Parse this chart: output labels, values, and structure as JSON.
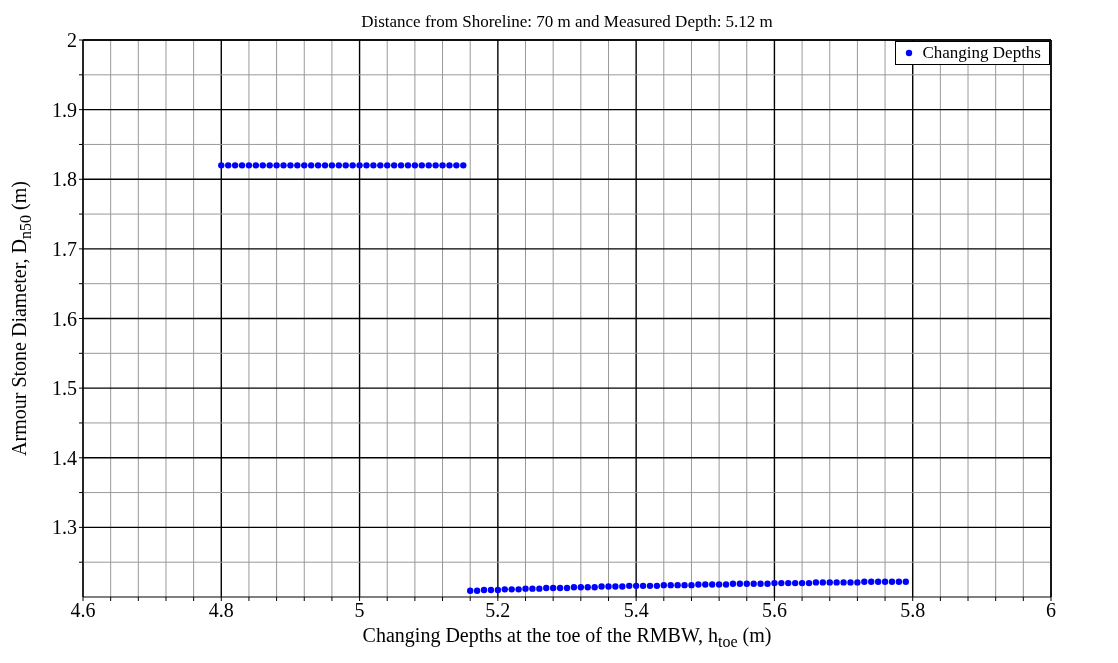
{
  "chart_data": {
    "type": "scatter",
    "title": "Distance from Shoreline: 70 m and Measured Depth: 5.12 m",
    "xlabel": "Changing Depths at the toe of the RMBW, h$_{toe}$ (m)",
    "ylabel": "Armour Stone Diameter, D$_{n50}$ (m)",
    "xlim": [
      4.6,
      6
    ],
    "ylim": [
      1.2,
      2
    ],
    "xticks": [
      4.6,
      {
        "value": 4.64,
        "label": null
      },
      {
        "value": 4.68,
        "label": null
      },
      {
        "value": 4.72,
        "label": null
      },
      {
        "value": 4.76,
        "label": null
      },
      4.8,
      {
        "value": 4.84,
        "label": null
      },
      {
        "value": 4.88,
        "label": null
      },
      {
        "value": 4.92,
        "label": null
      },
      {
        "value": 4.96,
        "label": null
      },
      5,
      {
        "value": 5.04,
        "label": null
      },
      {
        "value": 5.08,
        "label": null
      },
      {
        "value": 5.12,
        "label": null
      },
      {
        "value": 5.16,
        "label": null
      },
      5.2,
      {
        "value": 5.24,
        "label": null
      },
      {
        "value": 5.28,
        "label": null
      },
      {
        "value": 5.32,
        "label": null
      },
      {
        "value": 5.36,
        "label": null
      },
      5.4,
      {
        "value": 5.44,
        "label": null
      },
      {
        "value": 5.48,
        "label": null
      },
      {
        "value": 5.52,
        "label": null
      },
      {
        "value": 5.56,
        "label": null
      },
      5.6,
      {
        "value": 5.64,
        "label": null
      },
      {
        "value": 5.68,
        "label": null
      },
      {
        "value": 5.72,
        "label": null
      },
      {
        "value": 5.76,
        "label": null
      },
      5.8,
      {
        "value": 5.84,
        "label": null
      },
      {
        "value": 5.88,
        "label": null
      },
      {
        "value": 5.92,
        "label": null
      },
      {
        "value": 5.96,
        "label": null
      },
      6
    ],
    "yticks": [
      {
        "value": 1.25,
        "label": null
      },
      1.3,
      {
        "value": 1.35,
        "label": null
      },
      1.4,
      {
        "value": 1.45,
        "label": null
      },
      1.5,
      {
        "value": 1.55,
        "label": null
      },
      1.6,
      {
        "value": 1.65,
        "label": null
      },
      1.7,
      {
        "value": 1.75,
        "label": null
      },
      1.8,
      {
        "value": 1.85,
        "label": null
      },
      1.9,
      {
        "value": 1.95,
        "label": null
      },
      2
    ],
    "grid": true,
    "legend": "top right",
    "marker": "circle",
    "series": [
      {
        "name": "Changing Depths",
        "color": "#0000ff",
        "x": [
          4.8,
          4.81,
          4.82,
          4.83,
          4.84,
          4.85,
          4.86,
          4.87,
          4.88,
          4.89,
          4.9,
          4.91,
          4.92,
          4.93,
          4.94,
          4.95,
          4.96,
          4.97,
          4.98,
          4.99,
          5,
          5.01,
          5.02,
          5.03,
          5.04,
          5.05,
          5.06,
          5.07,
          5.08,
          5.09,
          5.1,
          5.11,
          5.12,
          5.13,
          5.14,
          5.15,
          5.16,
          5.17,
          5.18,
          5.19,
          5.2,
          5.21,
          5.22,
          5.23,
          5.24,
          5.25,
          5.26,
          5.27,
          5.28,
          5.29,
          5.3,
          5.31,
          5.32,
          5.33,
          5.34,
          5.35,
          5.36,
          5.37,
          5.38,
          5.39,
          5.4,
          5.41,
          5.42,
          5.43,
          5.44,
          5.45,
          5.46,
          5.47,
          5.48,
          5.49,
          5.5,
          5.51,
          5.52,
          5.53,
          5.54,
          5.55,
          5.56,
          5.57,
          5.58,
          5.59,
          5.6,
          5.61,
          5.62,
          5.63,
          5.64,
          5.65,
          5.66,
          5.67,
          5.68,
          5.69,
          5.7,
          5.71,
          5.72,
          5.73,
          5.74,
          5.75,
          5.76,
          5.77,
          5.78,
          5.79
        ],
        "values": [
          1.82,
          1.82,
          1.82,
          1.82,
          1.82,
          1.82,
          1.82,
          1.82,
          1.82,
          1.82,
          1.82,
          1.82,
          1.82,
          1.82,
          1.82,
          1.82,
          1.82,
          1.82,
          1.82,
          1.82,
          1.82,
          1.82,
          1.82,
          1.82,
          1.82,
          1.82,
          1.82,
          1.82,
          1.82,
          1.82,
          1.82,
          1.82,
          1.82,
          1.82,
          1.82,
          1.82,
          1.209,
          1.209,
          1.21,
          1.21,
          1.21,
          1.211,
          1.211,
          1.211,
          1.212,
          1.212,
          1.212,
          1.213,
          1.213,
          1.213,
          1.213,
          1.214,
          1.214,
          1.214,
          1.214,
          1.215,
          1.215,
          1.215,
          1.215,
          1.216,
          1.216,
          1.216,
          1.216,
          1.216,
          1.217,
          1.217,
          1.217,
          1.217,
          1.217,
          1.218,
          1.218,
          1.218,
          1.218,
          1.218,
          1.219,
          1.219,
          1.219,
          1.219,
          1.219,
          1.219,
          1.22,
          1.22,
          1.22,
          1.22,
          1.22,
          1.22,
          1.221,
          1.221,
          1.221,
          1.221,
          1.221,
          1.221,
          1.221,
          1.222,
          1.222,
          1.222,
          1.222,
          1.222,
          1.222,
          1.222
        ]
      }
    ]
  }
}
